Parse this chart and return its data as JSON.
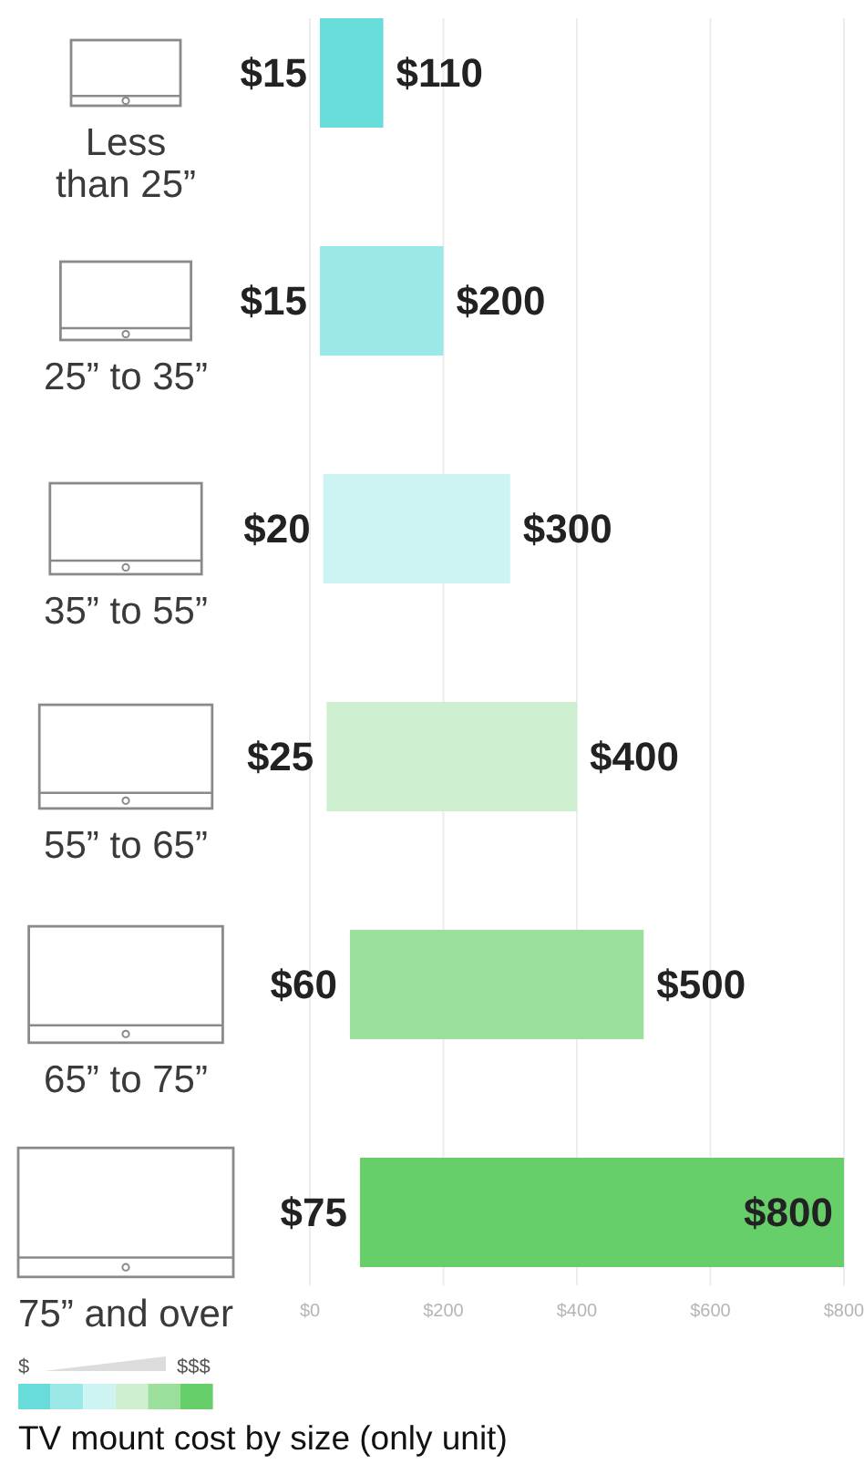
{
  "chart_data": {
    "type": "bar",
    "orientation": "horizontal",
    "title": "TV mount cost by size (only unit)",
    "categories": [
      "Less than 25”",
      "25” to 35”",
      "35” to 55”",
      "55” to 65”",
      "65” to 75”",
      "75” and over"
    ],
    "base": [
      15,
      15,
      20,
      25,
      60,
      75
    ],
    "values": [
      95,
      185,
      280,
      375,
      440,
      725
    ],
    "colors": [
      "#67dcdb",
      "#9ae8e8",
      "#cef3f3",
      "#cdefd0",
      "#9adf9c",
      "#66cf69"
    ],
    "xlim": [
      0,
      800
    ],
    "xticks": [
      {
        "value": 0,
        "label": "$0"
      },
      {
        "value": 200,
        "label": "$200"
      },
      {
        "value": 400,
        "label": "$400"
      },
      {
        "value": 600,
        "label": "$600"
      },
      {
        "value": 800,
        "label": "$800"
      }
    ],
    "grid": "x",
    "annotations": [
      "$15",
      "$110",
      "$15",
      "$200",
      "$20",
      "$300",
      "$25",
      "$400",
      "$60",
      "$500",
      "$75",
      "$800",
      "$",
      "$$$"
    ]
  }
}
